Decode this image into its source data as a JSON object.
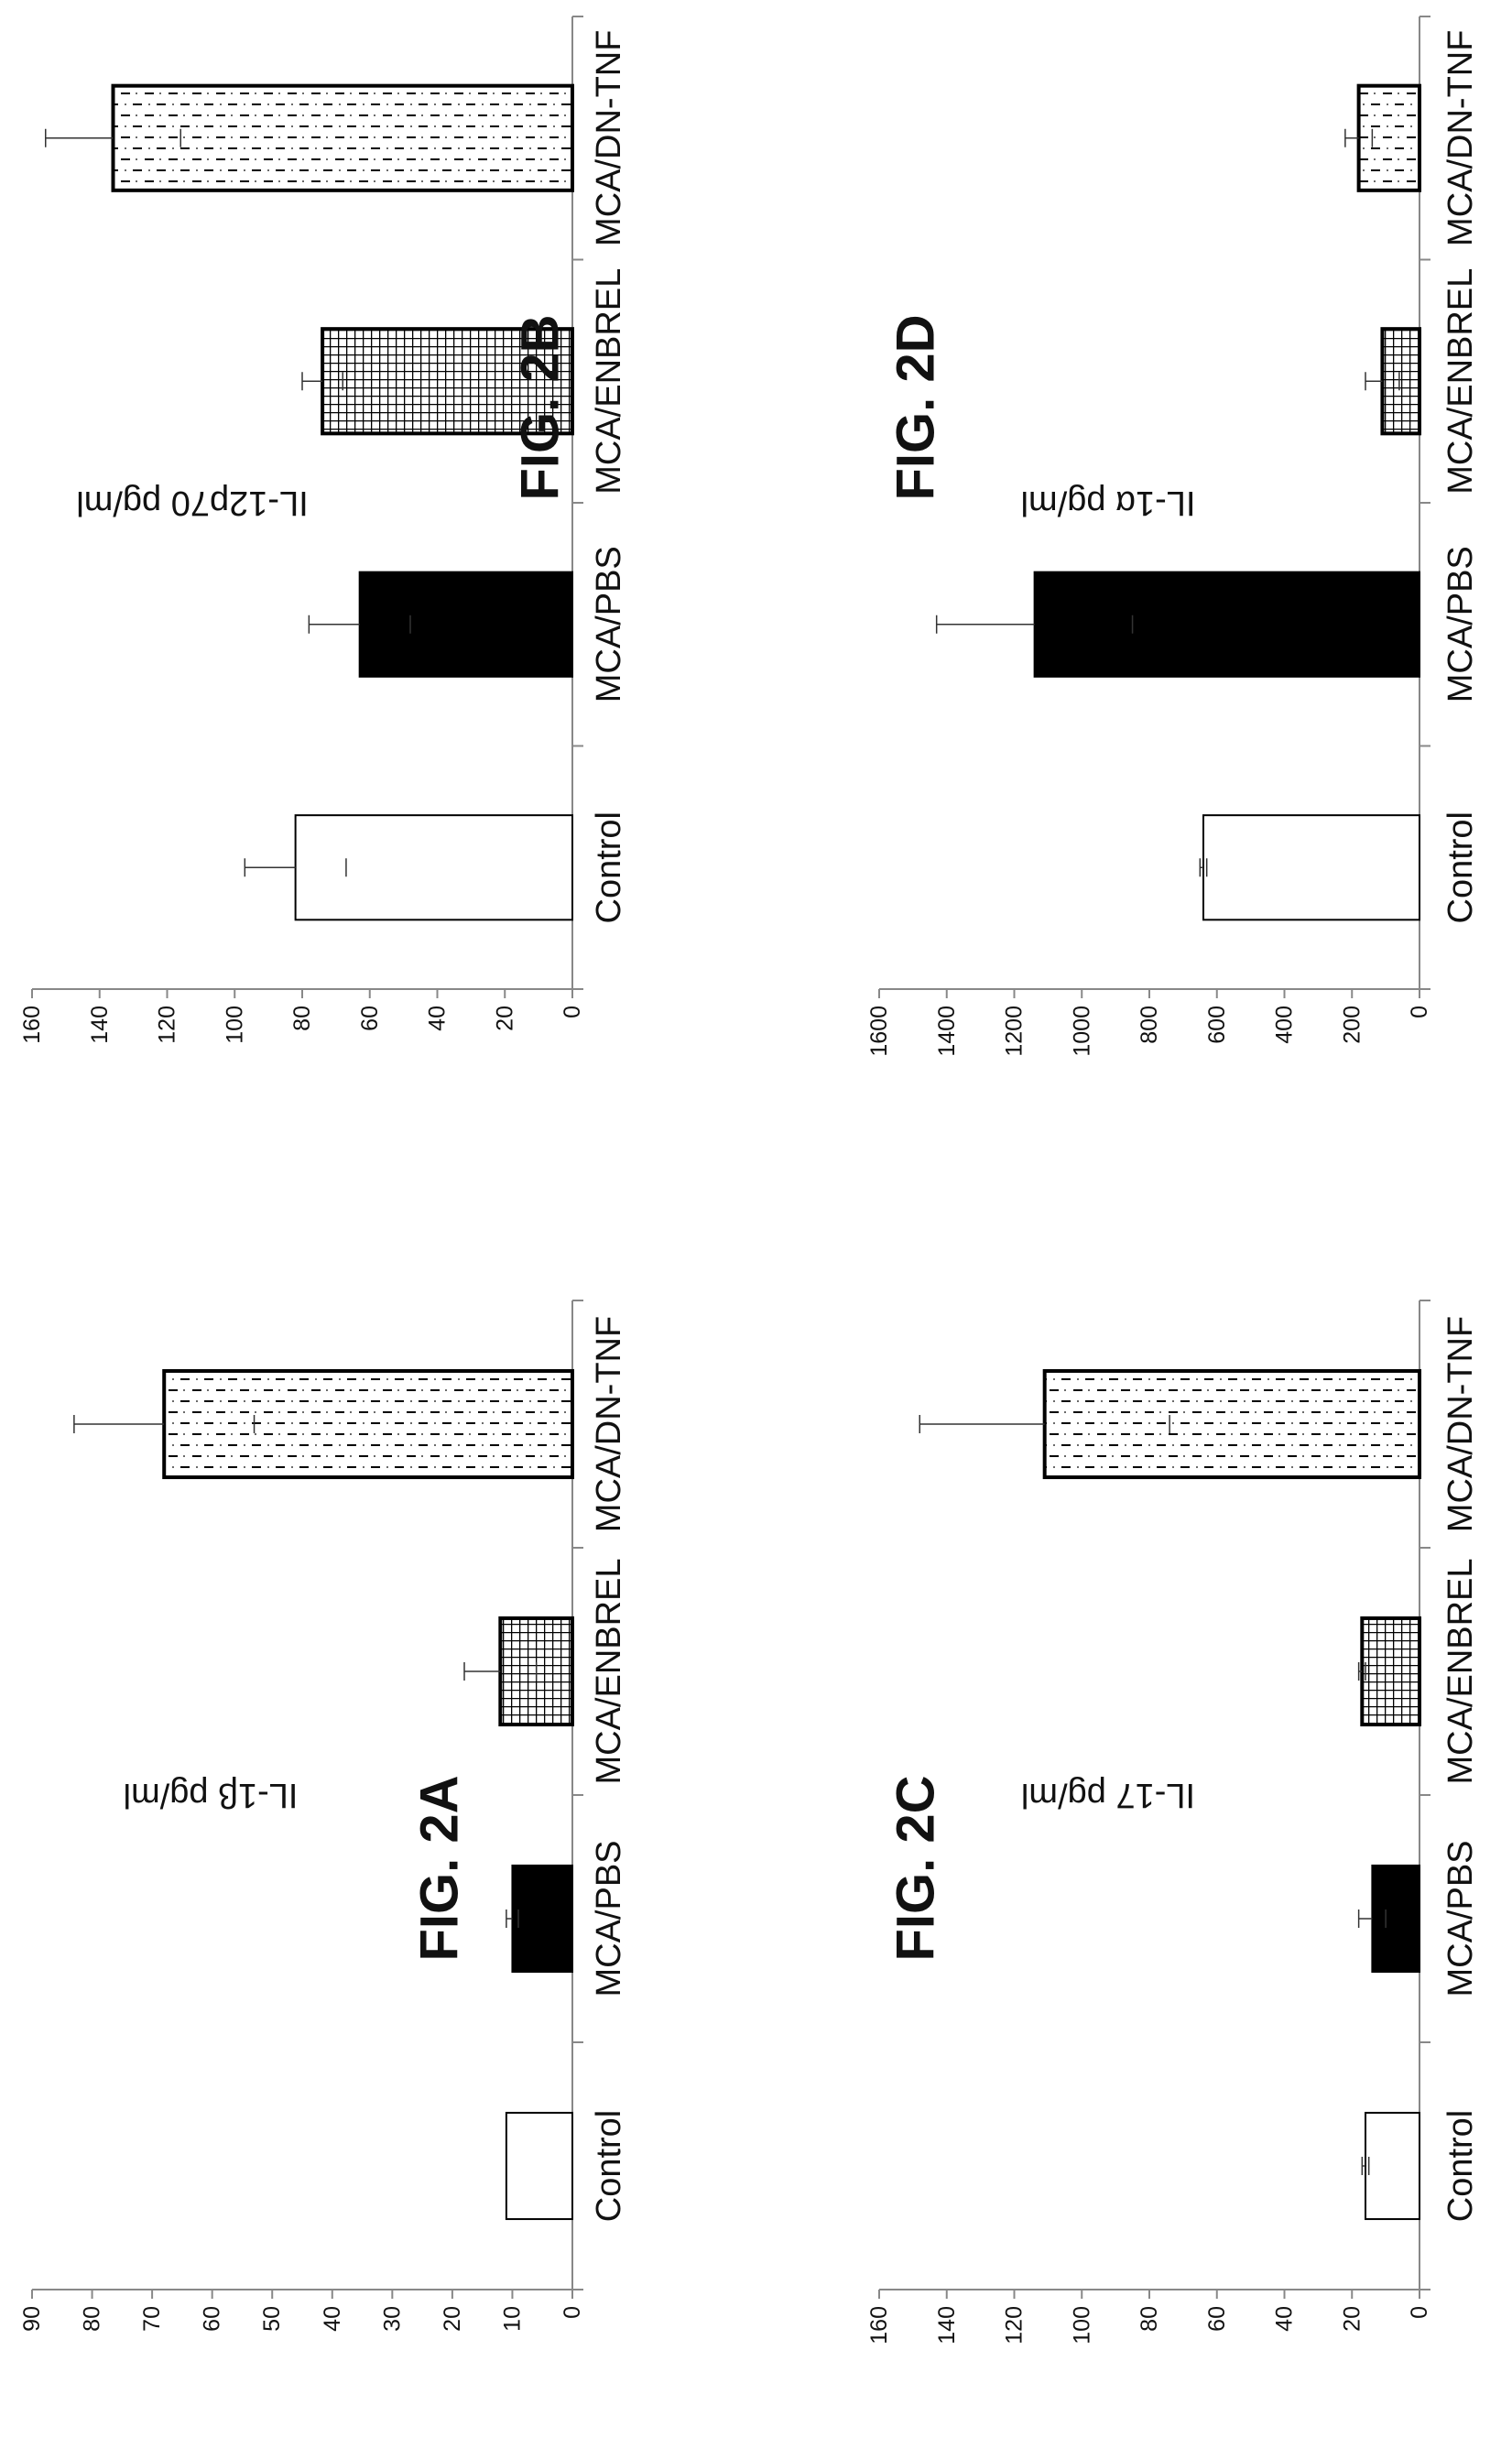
{
  "chart_data": [
    {
      "id": "2A",
      "type": "bar",
      "title": "FIG. 2A",
      "ylabel": "IL-1β pg/ml",
      "categories": [
        "Control",
        "MCA/PBS",
        "MCA/ENBREL",
        "MCA/DN-TNF"
      ],
      "values": [
        11,
        10,
        12,
        68
      ],
      "errors": [
        0,
        1,
        6,
        15
      ],
      "ylim": [
        0,
        90
      ],
      "yticks": [
        0,
        10,
        20,
        30,
        40,
        50,
        60,
        70,
        80,
        90
      ],
      "grid": false,
      "legend": "none",
      "orientation": "rotated 90° clockwise"
    },
    {
      "id": "2B",
      "type": "bar",
      "title": "FIG. 2B",
      "ylabel": "IL-12p70 pg/ml",
      "categories": [
        "Control",
        "MCA/PBS",
        "MCA/ENBREL",
        "MCA/DN-TNF"
      ],
      "values": [
        82,
        63,
        74,
        136
      ],
      "errors": [
        15,
        15,
        6,
        20
      ],
      "ylim": [
        0,
        160
      ],
      "yticks": [
        0,
        20,
        40,
        60,
        80,
        100,
        120,
        140,
        160
      ],
      "grid": false,
      "legend": "none",
      "orientation": "rotated 90° clockwise"
    },
    {
      "id": "2C",
      "type": "bar",
      "title": "FIG. 2C",
      "ylabel": "IL-17 pg/ml",
      "categories": [
        "Control",
        "MCA/PBS",
        "MCA/ENBREL",
        "MCA/DN-TNF"
      ],
      "values": [
        16,
        14,
        17,
        111
      ],
      "errors": [
        1,
        4,
        1,
        37
      ],
      "ylim": [
        0,
        160
      ],
      "yticks": [
        0,
        20,
        40,
        60,
        80,
        100,
        120,
        140,
        160
      ],
      "grid": false,
      "legend": "none",
      "orientation": "rotated 90° clockwise"
    },
    {
      "id": "2D",
      "type": "bar",
      "title": "FIG. 2D",
      "ylabel": "IL-1α pg/ml",
      "categories": [
        "Control",
        "MCA/PBS",
        "MCA/ENBREL",
        "MCA/DN-TNF"
      ],
      "values": [
        640,
        1140,
        110,
        180
      ],
      "errors": [
        10,
        290,
        50,
        40
      ],
      "ylim": [
        0,
        1600
      ],
      "yticks": [
        0,
        200,
        400,
        600,
        800,
        1000,
        1200,
        1400,
        1600
      ],
      "grid": false,
      "legend": "none",
      "orientation": "rotated 90° clockwise"
    }
  ],
  "bar_styles": [
    "white",
    "solid-black",
    "grid-pattern",
    "dashed-pattern"
  ]
}
